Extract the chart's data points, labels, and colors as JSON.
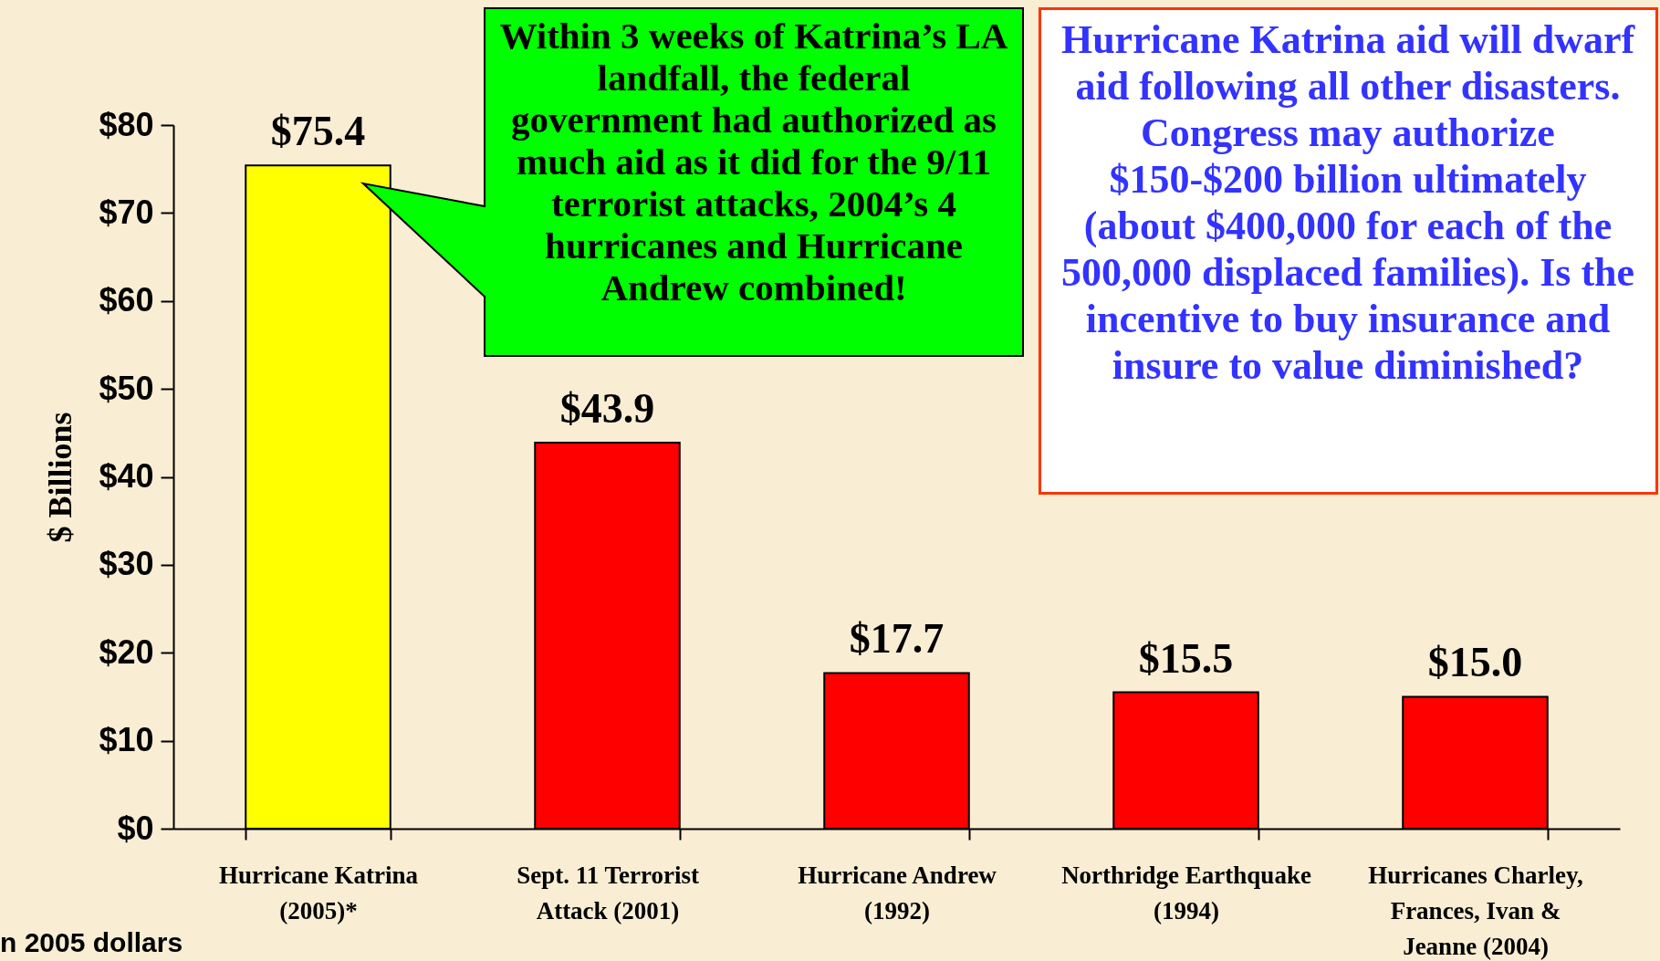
{
  "chart_data": {
    "type": "bar",
    "ylabel": "$ Billions",
    "categories": [
      "Hurricane Katrina (2005)*",
      "Sept. 11 Terrorist Attack (2001)",
      "Hurricane Andrew (1992)",
      "Northridge Earthquake (1994)",
      "Hurricanes Charley, Frances, Ivan & Jeanne (2004)"
    ],
    "values": [
      75.4,
      43.9,
      17.7,
      15.5,
      15.0
    ],
    "colors": [
      "#ffff00",
      "#ff0000",
      "#ff0000",
      "#ff0000",
      "#ff0000"
    ],
    "value_labels": [
      "$75.4",
      "$43.9",
      "$17.7",
      "$15.5",
      "$15.0"
    ],
    "ylim": [
      0,
      80
    ],
    "yticks": [
      {
        "value": 0,
        "label": "$0"
      },
      {
        "value": 10,
        "label": "$10"
      },
      {
        "value": 20,
        "label": "$20"
      },
      {
        "value": 30,
        "label": "$30"
      },
      {
        "value": 40,
        "label": "$40"
      },
      {
        "value": 50,
        "label": "$50"
      },
      {
        "value": 60,
        "label": "$60"
      },
      {
        "value": 70,
        "label": "$70"
      },
      {
        "value": 80,
        "label": "$80"
      }
    ],
    "grid": false,
    "annotations": [
      "Within 3 weeks of Katrina’s LA landfall, the federal government had authorized as much aid as it did for the 9/11 terrorist attacks, 2004’s 4 hurricanes and Hurricane Andrew combined!",
      "Hurricane Katrina aid will dwarf aid following all other disasters.  Congress may authorize $150-$200 billion ultimately (about $400,000 for each of the 500,000 displaced families).  Is the incentive to buy insurance and insure to value diminished?",
      "n 2005 dollars"
    ]
  }
}
